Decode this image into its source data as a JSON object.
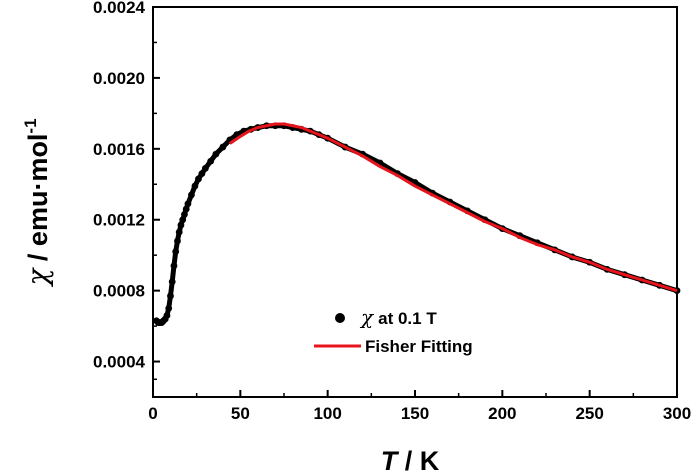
{
  "chart_data": {
    "type": "scatter",
    "xlabel": {
      "symbol": "T",
      "rest": " / K"
    },
    "ylabel": {
      "symbol": "χ",
      "rest": " / emu·mol",
      "superscript": "-1"
    },
    "xlim": [
      0,
      300
    ],
    "ylim": [
      0.0002,
      0.0024
    ],
    "x_ticks": [
      "0",
      "50",
      "100",
      "150",
      "200",
      "250",
      "300"
    ],
    "x_tick_values": [
      0,
      50,
      100,
      150,
      200,
      250,
      300
    ],
    "y_ticks": [
      "0.0004",
      "0.0008",
      "0.0012",
      "0.0016",
      "0.0020",
      "0.0024"
    ],
    "y_tick_values": [
      0.0004,
      0.0008,
      0.0012,
      0.0016,
      0.002,
      0.0024
    ],
    "legend_position": "center-bottom",
    "series": [
      {
        "name": "χ at 0.1 T",
        "legend_symbol": "χ",
        "legend_text": "at 0.1 T",
        "kind": "points",
        "color": "#000000",
        "x": [
          2,
          3,
          4,
          5,
          6,
          7,
          8,
          9,
          10,
          11,
          12,
          13,
          14,
          15,
          16,
          17,
          18,
          19,
          20,
          22,
          24,
          26,
          28,
          30,
          33,
          36,
          40,
          44,
          48,
          52,
          56,
          60,
          65,
          70,
          75,
          80,
          85,
          90,
          95,
          100,
          110,
          120,
          130,
          140,
          150,
          160,
          170,
          180,
          190,
          200,
          210,
          220,
          230,
          240,
          250,
          260,
          270,
          280,
          290,
          300
        ],
        "y": [
          0.00063,
          0.00062,
          0.00062,
          0.00062,
          0.00063,
          0.00064,
          0.00066,
          0.0007,
          0.00077,
          0.00085,
          0.00094,
          0.00102,
          0.00108,
          0.00113,
          0.00117,
          0.0012,
          0.00123,
          0.00126,
          0.00129,
          0.00134,
          0.00139,
          0.00143,
          0.00146,
          0.00149,
          0.00153,
          0.00157,
          0.00161,
          0.00165,
          0.00168,
          0.0017,
          0.00171,
          0.00172,
          0.00173,
          0.00173,
          0.00173,
          0.00172,
          0.00171,
          0.0017,
          0.00168,
          0.00166,
          0.00161,
          0.00157,
          0.00152,
          0.00146,
          0.00141,
          0.00135,
          0.0013,
          0.00125,
          0.0012,
          0.00115,
          0.00111,
          0.00107,
          0.00103,
          0.00099,
          0.00096,
          0.00092,
          0.00089,
          0.00086,
          0.00083,
          0.0008
        ]
      },
      {
        "name": "Fisher Fitting",
        "kind": "line",
        "color": "#e8141c",
        "x": [
          44,
          50,
          55,
          60,
          65,
          70,
          75,
          80,
          85,
          90,
          95,
          100,
          110,
          120,
          130,
          140,
          150,
          160,
          170,
          180,
          190,
          200,
          210,
          220,
          230,
          240,
          250,
          260,
          270,
          280,
          290,
          300
        ],
        "y": [
          0.00163,
          0.00167,
          0.0017,
          0.00172,
          0.00173,
          0.00174,
          0.00174,
          0.00173,
          0.00172,
          0.0017,
          0.00168,
          0.00166,
          0.00161,
          0.00156,
          0.0015,
          0.00145,
          0.00139,
          0.00134,
          0.00129,
          0.00124,
          0.00119,
          0.00115,
          0.0011,
          0.00106,
          0.00103,
          0.00099,
          0.00096,
          0.00092,
          0.00089,
          0.00086,
          0.00083,
          0.0008
        ]
      }
    ]
  }
}
